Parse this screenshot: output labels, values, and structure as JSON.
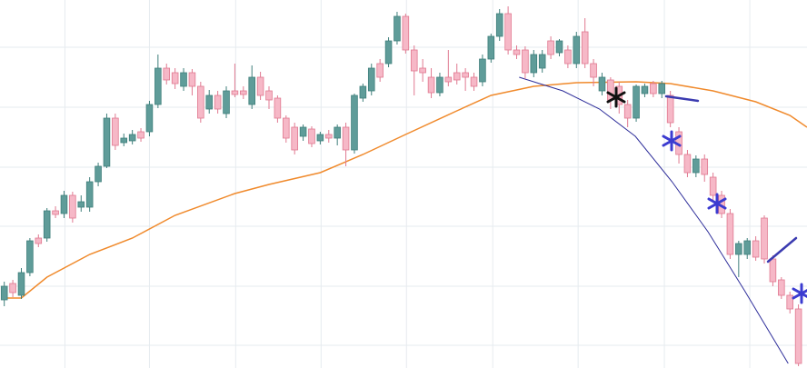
{
  "chart_data": {
    "type": "candlestick",
    "open": [
      75,
      93,
      80,
      105,
      143,
      143,
      173,
      170,
      190,
      177,
      177,
      205,
      222,
      275,
      248,
      250,
      260,
      260,
      290,
      330,
      325,
      310,
      325,
      310,
      285,
      300,
      280,
      305,
      305,
      290,
      320,
      305,
      297,
      275,
      265,
      255,
      263,
      250,
      257,
      253,
      265,
      240,
      297,
      305,
      335,
      335,
      360,
      387,
      350,
      330,
      320,
      303,
      320,
      325,
      325,
      320,
      315,
      340,
      365,
      390,
      350,
      350,
      325,
      330,
      360,
      347,
      350,
      335,
      370,
      335,
      305,
      317,
      310,
      290,
      275,
      302,
      313,
      302,
      300,
      260,
      235,
      215,
      230,
      210,
      190,
      170,
      125,
      125,
      140,
      165,
      120,
      97,
      80,
      65
    ],
    "high": [
      95,
      97,
      110,
      143,
      147,
      176,
      178,
      195,
      194,
      190,
      210,
      226,
      280,
      280,
      258,
      262,
      264,
      294,
      345,
      335,
      330,
      330,
      329,
      315,
      306,
      305,
      310,
      335,
      310,
      333,
      326,
      310,
      300,
      278,
      270,
      268,
      266,
      260,
      262,
      268,
      270,
      302,
      313,
      335,
      340,
      364,
      392,
      390,
      355,
      340,
      330,
      325,
      350,
      335,
      330,
      325,
      345,
      368,
      395,
      398,
      355,
      354,
      350,
      350,
      365,
      362,
      355,
      370,
      385,
      340,
      325,
      320,
      315,
      295,
      312,
      313,
      316,
      316,
      305,
      265,
      240,
      234,
      235,
      215,
      195,
      175,
      140,
      143,
      145,
      168,
      124,
      100,
      84,
      70
    ],
    "low": [
      68,
      78,
      76,
      101,
      133,
      139,
      165,
      165,
      160,
      172,
      172,
      200,
      220,
      240,
      244,
      246,
      249,
      255,
      286,
      312,
      307,
      305,
      300,
      270,
      280,
      280,
      275,
      298,
      296,
      285,
      295,
      285,
      270,
      248,
      235,
      250,
      243,
      246,
      248,
      245,
      222,
      236,
      293,
      300,
      315,
      331,
      356,
      346,
      300,
      315,
      297,
      299,
      310,
      312,
      305,
      305,
      310,
      336,
      360,
      345,
      340,
      318,
      320,
      325,
      340,
      343,
      330,
      330,
      330,
      310,
      300,
      285,
      280,
      265,
      271,
      298,
      298,
      297,
      265,
      225,
      210,
      210,
      205,
      185,
      165,
      120,
      100,
      120,
      118,
      115,
      90,
      76,
      60,
      2
    ],
    "close": [
      90,
      83,
      105,
      140,
      137,
      173,
      169,
      190,
      165,
      183,
      205,
      222,
      275,
      245,
      253,
      257,
      253,
      290,
      330,
      317,
      313,
      325,
      310,
      275,
      300,
      285,
      305,
      301,
      301,
      320,
      300,
      295,
      275,
      253,
      240,
      265,
      247,
      257,
      253,
      265,
      240,
      300,
      310,
      330,
      320,
      360,
      387,
      350,
      327,
      325,
      303,
      320,
      315,
      317,
      320,
      310,
      340,
      365,
      390,
      350,
      345,
      325,
      345,
      345,
      345,
      360,
      335,
      365,
      335,
      320,
      320,
      295,
      290,
      275,
      310,
      310,
      302,
      313,
      270,
      235,
      215,
      230,
      213,
      190,
      170,
      125,
      137,
      140,
      122,
      120,
      95,
      80,
      65,
      5
    ],
    "up_color": "#5f9c99",
    "up_stroke": "#3f7f7b",
    "down_color": "#f6b8c7",
    "down_stroke": "#e07990",
    "lines": [
      {
        "color": "#f08a2c",
        "x": [
          0,
          2,
          5,
          10,
          15,
          20,
          27,
          31,
          37,
          42,
          47,
          53,
          57,
          62,
          67,
          74,
          78,
          83,
          88,
          92,
          94
        ],
        "values": [
          77,
          77,
          100,
          125,
          143,
          168,
          192,
          202,
          215,
          235,
          257,
          283,
          300,
          310,
          314,
          315,
          313,
          305,
          293,
          278,
          265
        ]
      },
      {
        "color": "#2e2e9a",
        "x": [
          60.3,
          65.4,
          69.7,
          73.9,
          78.2,
          82.4,
          86.7,
          91.8
        ],
        "values": [
          320,
          305,
          285,
          255,
          205,
          150,
          85,
          5
        ]
      }
    ],
    "xlim": [
      -0.5,
      94
    ],
    "ylim": [
      0,
      405
    ],
    "xticks": [
      7.1,
      17,
      27.1,
      37.1,
      47.1,
      57.2,
      67.2,
      77.3,
      87.3
    ],
    "yticks": [
      25,
      90,
      156,
      221,
      287,
      353
    ],
    "grid": true
  }
}
